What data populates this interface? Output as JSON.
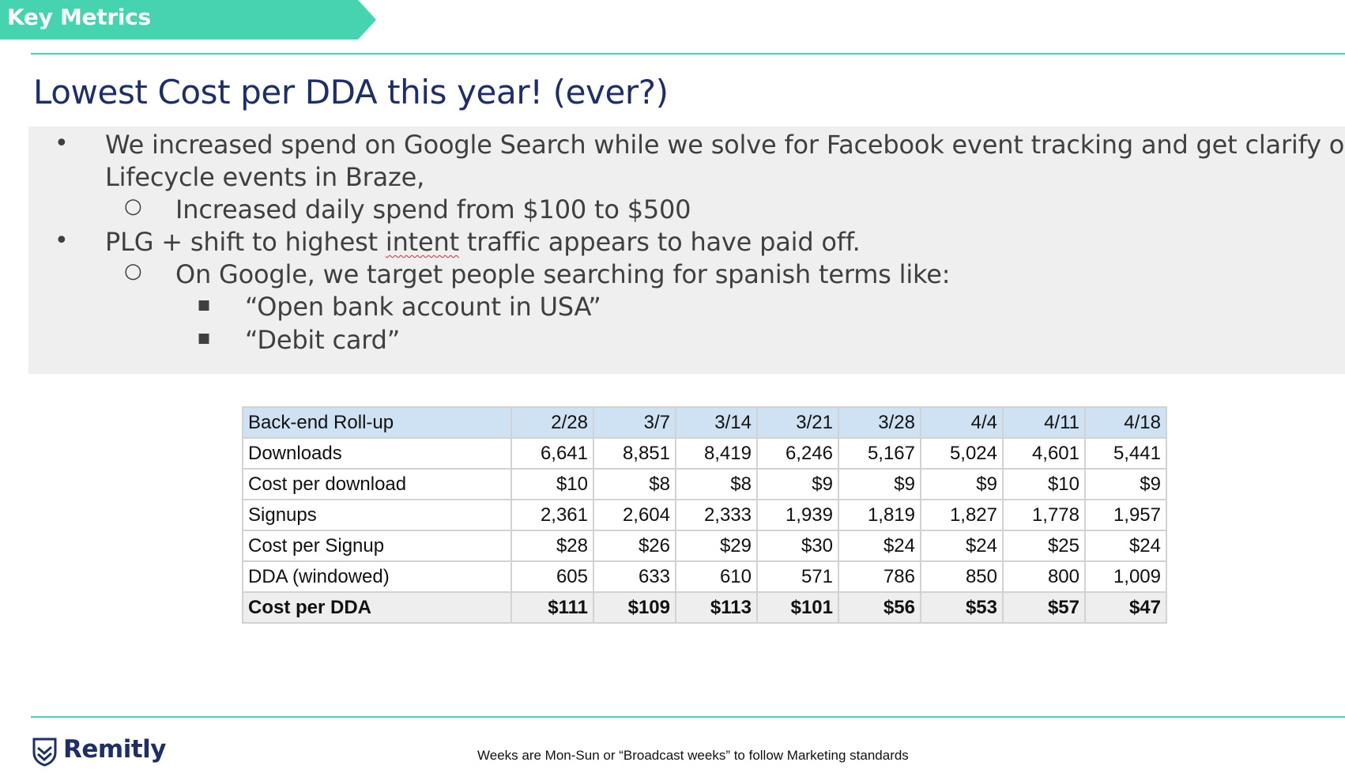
{
  "header": {
    "banner": "Key Metrics"
  },
  "title": "Lowest Cost per DDA this year! (ever?)",
  "bullets": {
    "b1_line1": "We increased spend on Google Search while we solve for Facebook event tracking and get clarify on",
    "b1_line2": "Lifecycle events in Braze,",
    "b1_sub1": "Increased daily spend from $100 to $500",
    "b2_pre": "PLG + shift to highest ",
    "b2_flag": "intent",
    "b2_post": " traffic appears to have paid off.",
    "b2_sub1": "On Google, we target people searching for spanish terms like:",
    "b2_sq1": "“Open bank account in USA”",
    "b2_sq2": "“Debit card”"
  },
  "table": {
    "header": [
      "Back-end Roll-up",
      "2/28",
      "3/7",
      "3/14",
      "3/21",
      "3/28",
      "4/4",
      "4/11",
      "4/18"
    ],
    "rows": [
      [
        "Downloads",
        "6,641",
        "8,851",
        "8,419",
        "6,246",
        "5,167",
        "5,024",
        "4,601",
        "5,441"
      ],
      [
        "Cost per download",
        "$10",
        "$8",
        "$8",
        "$9",
        "$9",
        "$9",
        "$10",
        "$9"
      ],
      [
        "Signups",
        "2,361",
        "2,604",
        "2,333",
        "1,939",
        "1,819",
        "1,827",
        "1,778",
        "1,957"
      ],
      [
        "Cost per Signup",
        "$28",
        "$26",
        "$29",
        "$30",
        "$24",
        "$24",
        "$25",
        "$24"
      ],
      [
        "DDA (windowed)",
        "605",
        "633",
        "610",
        "571",
        "786",
        "850",
        "800",
        "1,009"
      ],
      [
        "Cost per DDA",
        "$111",
        "$109",
        "$113",
        "$101",
        "$56",
        "$53",
        "$57",
        "$47"
      ]
    ]
  },
  "footer": {
    "brand": "Remitly",
    "note": "Weeks are Mon-Sun or “Broadcast weeks” to follow Marketing standards"
  },
  "colors": {
    "accent": "#45d3b0",
    "navy": "#1e2e6a",
    "table_header": "#cfe2f3"
  },
  "icons": {
    "logo": "remitly-shield-logo"
  }
}
